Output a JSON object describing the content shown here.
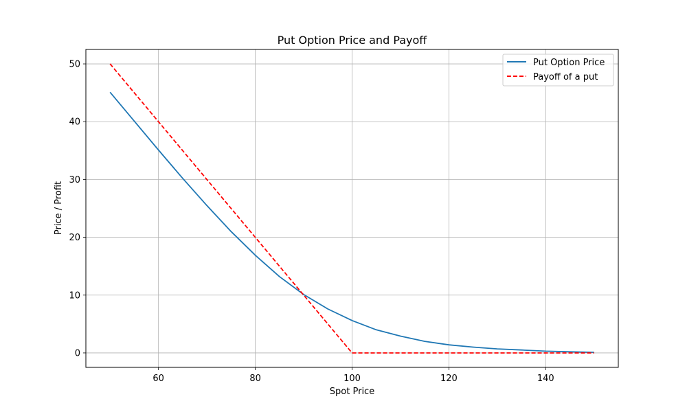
{
  "chart_data": {
    "type": "line",
    "title": "Put Option Price and Payoff",
    "xlabel": "Spot Price",
    "ylabel": "Price / Profit",
    "xlim": [
      45,
      155
    ],
    "ylim": [
      -2.5,
      52.5
    ],
    "xticks": [
      60,
      80,
      100,
      120,
      140
    ],
    "yticks": [
      0,
      10,
      20,
      30,
      40,
      50
    ],
    "grid": true,
    "legend_position": "top-right",
    "series": [
      {
        "name": "Put Option Price",
        "color": "#1f77b4",
        "style": "solid",
        "x": [
          50,
          55,
          60,
          65,
          70,
          75,
          80,
          85,
          90,
          95,
          100,
          105,
          110,
          115,
          120,
          125,
          130,
          135,
          140,
          145,
          150
        ],
        "y": [
          45.1,
          40.1,
          35.1,
          30.2,
          25.5,
          21.0,
          16.9,
          13.2,
          10.1,
          7.6,
          5.6,
          4.0,
          2.9,
          2.0,
          1.4,
          1.0,
          0.7,
          0.5,
          0.3,
          0.2,
          0.1
        ]
      },
      {
        "name": "Payoff of a put",
        "color": "#ff0000",
        "style": "dashed",
        "x": [
          50,
          100,
          150
        ],
        "y": [
          50,
          0,
          0
        ]
      }
    ]
  }
}
